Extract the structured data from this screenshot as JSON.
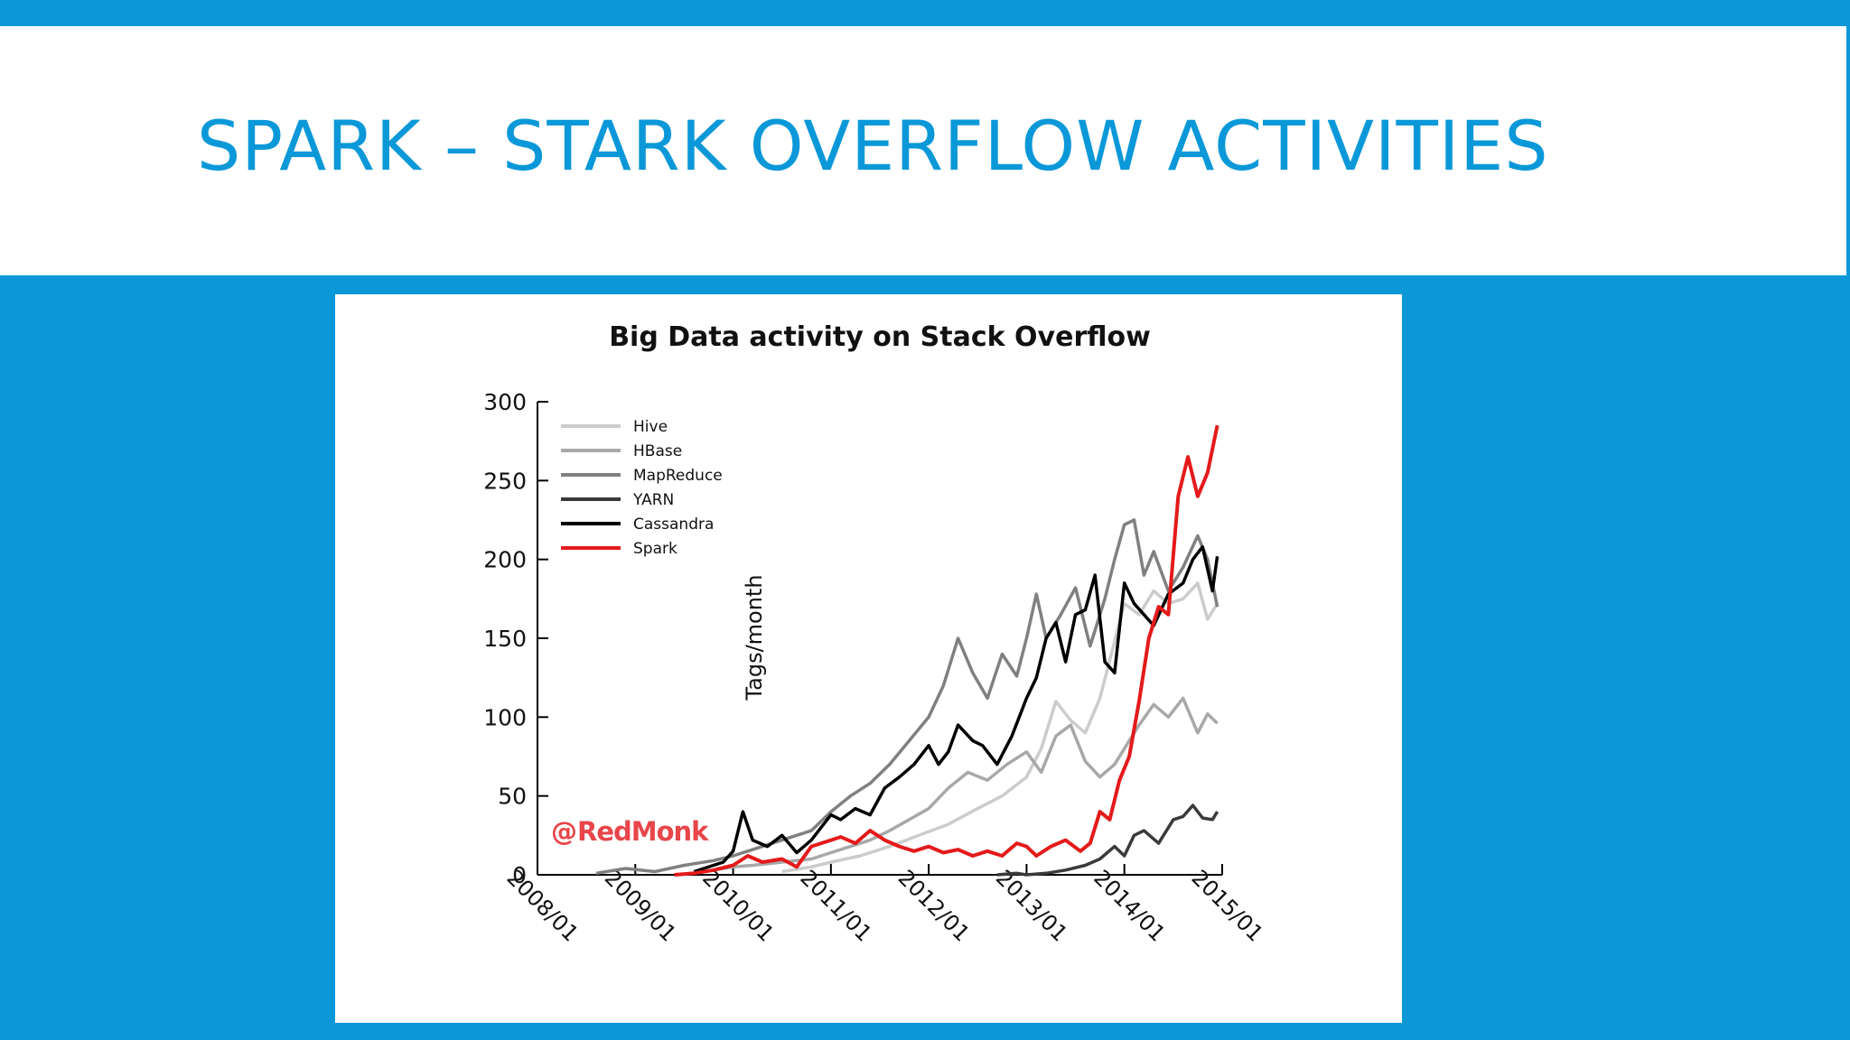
{
  "slide": {
    "title": "SPARK – STARK OVERFLOW ACTIVITIES"
  },
  "colors": {
    "background": "#0b98d9",
    "title": "#0b98d9",
    "panel": "#ffffff",
    "watermark": "#e8464a"
  },
  "chart_data": {
    "type": "line",
    "title": "Big Data activity on Stack Overflow",
    "xlabel": "",
    "ylabel": "Tags/month",
    "xlim": [
      2008.0,
      2015.0
    ],
    "ylim": [
      0,
      300
    ],
    "x_ticks": [
      2008,
      2009,
      2010,
      2011,
      2012,
      2013,
      2014,
      2015
    ],
    "x_tick_labels": [
      "2008/01",
      "2009/01",
      "2010/01",
      "2011/01",
      "2012/01",
      "2013/01",
      "2014/01",
      "2015/01"
    ],
    "y_ticks": [
      0,
      50,
      100,
      150,
      200,
      250,
      300
    ],
    "y_tick_labels": [
      "0",
      "50",
      "100",
      "150",
      "200",
      "250",
      "300"
    ],
    "legend_position": "top-left",
    "watermark": "RedMonk",
    "series": [
      {
        "name": "Hive",
        "color": "#cccccc",
        "x": [
          2010.5,
          2010.8,
          2011.0,
          2011.3,
          2011.6,
          2011.9,
          2012.2,
          2012.5,
          2012.75,
          2013.0,
          2013.15,
          2013.3,
          2013.45,
          2013.6,
          2013.75,
          2013.9,
          2014.0,
          2014.15,
          2014.3,
          2014.45,
          2014.6,
          2014.75,
          2014.85,
          2014.95
        ],
        "y": [
          2,
          5,
          8,
          12,
          18,
          25,
          32,
          42,
          50,
          62,
          80,
          110,
          98,
          90,
          112,
          148,
          172,
          165,
          180,
          172,
          175,
          185,
          162,
          172
        ]
      },
      {
        "name": "HBase",
        "color": "#a8a8a8",
        "x": [
          2009.8,
          2010.0,
          2010.2,
          2010.5,
          2010.8,
          2011.0,
          2011.2,
          2011.4,
          2011.6,
          2011.8,
          2012.0,
          2012.2,
          2012.4,
          2012.6,
          2012.8,
          2013.0,
          2013.15,
          2013.3,
          2013.45,
          2013.6,
          2013.75,
          2013.9,
          2014.0,
          2014.15,
          2014.3,
          2014.45,
          2014.6,
          2014.75,
          2014.85,
          2014.95
        ],
        "y": [
          3,
          5,
          6,
          8,
          10,
          14,
          18,
          22,
          28,
          35,
          42,
          55,
          65,
          60,
          70,
          78,
          65,
          88,
          95,
          72,
          62,
          70,
          80,
          95,
          108,
          100,
          112,
          90,
          102,
          96
        ]
      },
      {
        "name": "MapReduce",
        "color": "#808080",
        "x": [
          2008.6,
          2008.9,
          2009.2,
          2009.5,
          2009.8,
          2010.0,
          2010.2,
          2010.4,
          2010.6,
          2010.8,
          2011.0,
          2011.2,
          2011.4,
          2011.6,
          2011.8,
          2012.0,
          2012.15,
          2012.3,
          2012.45,
          2012.6,
          2012.75,
          2012.9,
          2013.0,
          2013.1,
          2013.2,
          2013.35,
          2013.5,
          2013.65,
          2013.8,
          2013.9,
          2014.0,
          2014.1,
          2014.2,
          2014.3,
          2014.45,
          2014.6,
          2014.75,
          2014.85,
          2014.95
        ],
        "y": [
          1,
          4,
          2,
          6,
          9,
          12,
          16,
          20,
          24,
          28,
          40,
          50,
          58,
          70,
          85,
          100,
          120,
          150,
          128,
          112,
          140,
          126,
          150,
          178,
          150,
          165,
          182,
          145,
          175,
          200,
          222,
          225,
          190,
          205,
          180,
          195,
          215,
          200,
          170
        ]
      },
      {
        "name": "YARN",
        "color": "#3a3a3a",
        "x": [
          2012.7,
          2012.9,
          2013.0,
          2013.2,
          2013.4,
          2013.6,
          2013.75,
          2013.9,
          2014.0,
          2014.1,
          2014.2,
          2014.35,
          2014.5,
          2014.6,
          2014.7,
          2014.8,
          2014.9,
          2014.95
        ],
        "y": [
          0,
          1,
          0,
          1,
          3,
          6,
          10,
          18,
          12,
          25,
          28,
          20,
          35,
          37,
          44,
          36,
          35,
          40
        ]
      },
      {
        "name": "Cassandra",
        "color": "#000000",
        "x": [
          2009.6,
          2009.9,
          2010.0,
          2010.1,
          2010.2,
          2010.35,
          2010.5,
          2010.65,
          2010.8,
          2010.9,
          2011.0,
          2011.1,
          2011.25,
          2011.4,
          2011.55,
          2011.7,
          2011.85,
          2012.0,
          2012.1,
          2012.2,
          2012.3,
          2012.45,
          2012.55,
          2012.7,
          2012.85,
          2013.0,
          2013.1,
          2013.2,
          2013.3,
          2013.4,
          2013.5,
          2013.6,
          2013.7,
          2013.8,
          2013.9,
          2014.0,
          2014.1,
          2014.2,
          2014.3,
          2014.45,
          2014.6,
          2014.7,
          2014.8,
          2014.9,
          2014.95
        ],
        "y": [
          2,
          8,
          15,
          40,
          22,
          18,
          25,
          14,
          22,
          30,
          38,
          35,
          42,
          38,
          55,
          62,
          70,
          82,
          70,
          78,
          95,
          85,
          82,
          70,
          88,
          112,
          125,
          150,
          160,
          135,
          165,
          168,
          190,
          135,
          128,
          185,
          172,
          165,
          158,
          178,
          185,
          200,
          208,
          180,
          202
        ]
      },
      {
        "name": "Spark",
        "color": "#e41a1a",
        "x": [
          2009.4,
          2009.6,
          2009.8,
          2010.0,
          2010.15,
          2010.3,
          2010.5,
          2010.65,
          2010.8,
          2011.0,
          2011.1,
          2011.25,
          2011.4,
          2011.55,
          2011.7,
          2011.85,
          2012.0,
          2012.15,
          2012.3,
          2012.45,
          2012.6,
          2012.75,
          2012.9,
          2013.0,
          2013.1,
          2013.25,
          2013.4,
          2013.55,
          2013.65,
          2013.75,
          2013.85,
          2013.95,
          2014.05,
          2014.15,
          2014.25,
          2014.35,
          2014.45,
          2014.55,
          2014.65,
          2014.75,
          2014.85,
          2014.95
        ],
        "y": [
          0,
          1,
          3,
          6,
          12,
          8,
          10,
          5,
          18,
          22,
          24,
          20,
          28,
          22,
          18,
          15,
          18,
          14,
          16,
          12,
          15,
          12,
          20,
          18,
          12,
          18,
          22,
          15,
          20,
          40,
          35,
          60,
          75,
          110,
          150,
          170,
          165,
          240,
          265,
          240,
          255,
          285
        ]
      }
    ]
  }
}
